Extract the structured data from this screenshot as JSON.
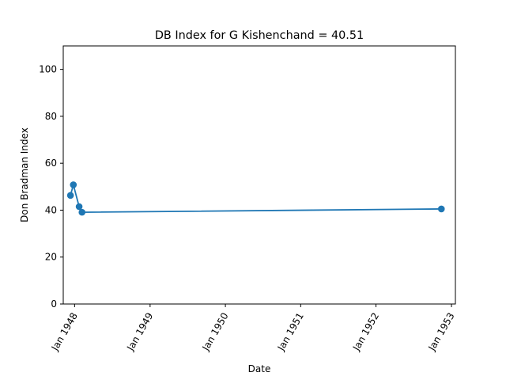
{
  "chart_data": {
    "type": "line",
    "title": "DB Index for G Kishenchand = 40.51",
    "xlabel": "Date",
    "ylabel": "Don Bradman Index",
    "xlim": [
      "1947-11-07",
      "1953-01-20"
    ],
    "ylim": [
      0,
      110
    ],
    "x_ticks": [
      {
        "date": "1948-01-01",
        "label": "Jan 1948"
      },
      {
        "date": "1949-01-01",
        "label": "Jan 1949"
      },
      {
        "date": "1950-01-01",
        "label": "Jan 1950"
      },
      {
        "date": "1951-01-01",
        "label": "Jan 1951"
      },
      {
        "date": "1952-01-01",
        "label": "Jan 1952"
      },
      {
        "date": "1953-01-01",
        "label": "Jan 1953"
      }
    ],
    "y_ticks": [
      0,
      20,
      40,
      60,
      80,
      100
    ],
    "grid": false,
    "series": [
      {
        "color": "#1f77b4",
        "marker": "circle",
        "points": [
          {
            "x": "1947-12-12",
            "y": 46.3
          },
          {
            "x": "1947-12-26",
            "y": 50.8
          },
          {
            "x": "1948-01-23",
            "y": 41.5
          },
          {
            "x": "1948-02-06",
            "y": 39.1
          },
          {
            "x": "1952-11-13",
            "y": 40.51
          }
        ]
      }
    ]
  }
}
